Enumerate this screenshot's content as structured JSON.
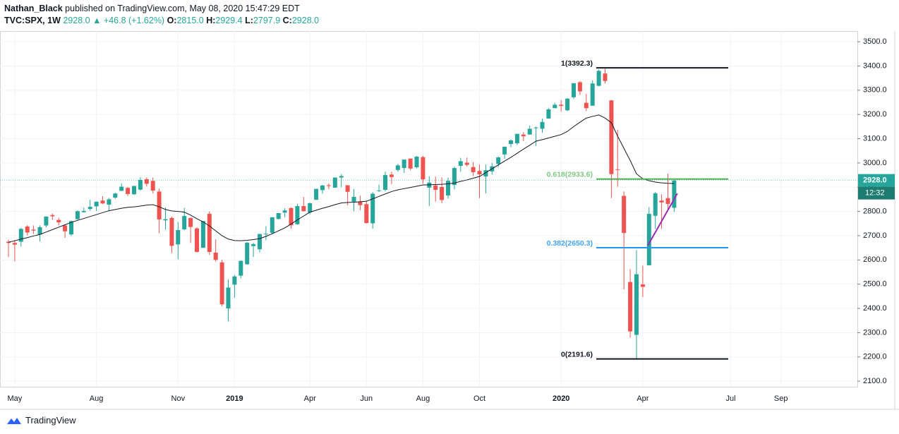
{
  "header": {
    "author": "Nathan_Black",
    "published": "published on TradingView.com, May 08, 2020 15:47:29 EDT",
    "symbol": "TVC:SPX, 1W",
    "last": "2928.0",
    "change": "▲ +46.8 (+1.62%)",
    "ohlc": [
      {
        "key": "O:",
        "value": "2815.0"
      },
      {
        "key": "H:",
        "value": "2929.4"
      },
      {
        "key": "L:",
        "value": "2797.9"
      },
      {
        "key": "C:",
        "value": "2928.0"
      }
    ]
  },
  "footer": {
    "brand": "TradingView"
  },
  "chart_data": {
    "type": "candlestick",
    "up_color": "#26a69a",
    "down_color": "#ef5350",
    "grid": true,
    "categories": [
      null,
      "May",
      null,
      null,
      null,
      null,
      null,
      null,
      null,
      null,
      null,
      null,
      null,
      null,
      "Aug",
      null,
      null,
      null,
      null,
      null,
      null,
      null,
      null,
      null,
      null,
      null,
      null,
      "Nov",
      null,
      null,
      null,
      null,
      null,
      null,
      null,
      null,
      "2019",
      null,
      null,
      null,
      null,
      null,
      null,
      null,
      null,
      null,
      null,
      null,
      "Apr",
      null,
      null,
      null,
      null,
      null,
      null,
      null,
      null,
      "Jun",
      null,
      null,
      null,
      null,
      null,
      null,
      null,
      null,
      "Aug",
      null,
      null,
      null,
      null,
      null,
      null,
      null,
      null,
      "Oct",
      null,
      null,
      null,
      null,
      null,
      null,
      null,
      null,
      null,
      null,
      null,
      null,
      "2020",
      null,
      null,
      null,
      null,
      null,
      null,
      null,
      null,
      null,
      null,
      null,
      null,
      "Apr",
      null,
      null,
      null,
      null,
      null,
      null,
      null,
      null,
      null,
      null,
      null,
      null,
      null,
      "Jul",
      null,
      null,
      null,
      null,
      null,
      null,
      null,
      "Sep",
      null,
      null,
      null,
      null,
      null,
      null,
      null,
      null,
      null,
      null,
      null,
      null
    ],
    "open": [
      2675,
      2670,
      2675,
      2738,
      2725,
      2705,
      2742,
      2785,
      2765,
      2742,
      2705,
      2768,
      2797,
      2810,
      2821,
      2845,
      2828,
      2857,
      2885,
      2897,
      2871,
      2890,
      2933,
      2926,
      2882,
      2763,
      2773,
      2664,
      2726,
      2773,
      2730,
      2650,
      2790,
      2630,
      2590,
      2400,
      2498,
      2535,
      2582,
      2657,
      2644,
      2706,
      2712,
      2769,
      2795,
      2814,
      2747,
      2822,
      2796,
      2848,
      2888,
      2908,
      2898,
      2940,
      2908,
      2840,
      2841,
      2830,
      2751,
      2885,
      2889,
      2952,
      2971,
      2979,
      3018,
      2982,
      3024,
      2898,
      2907,
      2901,
      2866,
      2909,
      2988,
      3001,
      2983,
      2967,
      2944,
      2965,
      2996,
      3035,
      3078,
      3081,
      3117,
      3117,
      3143,
      3141,
      3183,
      3226,
      3240,
      3217,
      3271,
      3333,
      3248,
      3236,
      3318,
      3369,
      3258,
      2974,
      2864,
      2509,
      2291,
      2499,
      2578,
      2782,
      2845,
      2855,
      2815,
      null,
      null,
      null,
      null,
      null,
      null,
      null,
      null,
      null,
      null,
      null,
      null,
      null,
      null,
      null,
      null,
      null,
      null,
      null,
      null,
      null,
      null,
      null,
      null,
      null,
      null,
      null,
      null,
      null
    ],
    "high": [
      2683,
      2682,
      2732,
      2743,
      2742,
      2742,
      2779,
      2791,
      2774,
      2746,
      2762,
      2804,
      2816,
      2848,
      2841,
      2863,
      2855,
      2877,
      2916,
      2901,
      2906,
      2941,
      2940,
      2940,
      2894,
      2816,
      2779,
      2756,
      2815,
      2775,
      2735,
      2760,
      2800,
      2685,
      2601,
      2520,
      2538,
      2598,
      2675,
      2671,
      2708,
      2739,
      2776,
      2794,
      2813,
      2817,
      2831,
      2860,
      2836,
      2893,
      2910,
      2916,
      2940,
      2954,
      2908,
      2892,
      2865,
      2841,
      2880,
      2911,
      2964,
      2964,
      2996,
      3014,
      3018,
      3028,
      3029,
      2945,
      2944,
      2940,
      2940,
      2985,
      3021,
      3022,
      3003,
      2993,
      2993,
      3000,
      3027,
      3067,
      3097,
      3120,
      3127,
      3154,
      3150,
      3183,
      3226,
      3248,
      3259,
      3268,
      3329,
      3338,
      3285,
      3341,
      3385,
      3393,
      3260,
      3137,
      2882,
      2562,
      2641,
      2576,
      2818,
      2880,
      2871,
      2955,
      2929.4,
      null,
      null,
      null,
      null,
      null,
      null,
      null,
      null,
      null,
      null,
      null,
      null,
      null,
      null,
      null,
      null,
      null,
      null,
      null,
      null,
      null,
      null,
      null,
      null,
      null,
      null,
      null,
      null,
      null
    ],
    "low": [
      2612,
      2594,
      2655,
      2701,
      2707,
      2676,
      2735,
      2765,
      2742,
      2691,
      2699,
      2766,
      2795,
      2803,
      2802,
      2830,
      2803,
      2852,
      2884,
      2864,
      2868,
      2886,
      2903,
      2874,
      2710,
      2725,
      2628,
      2603,
      2722,
      2670,
      2631,
      2649,
      2621,
      2593,
      2409,
      2347,
      2444,
      2524,
      2580,
      2612,
      2631,
      2681,
      2705,
      2767,
      2775,
      2729,
      2745,
      2800,
      2788,
      2848,
      2873,
      2892,
      2898,
      2900,
      2825,
      2801,
      2805,
      2750,
      2729,
      2880,
      2883,
      2913,
      2964,
      2959,
      2970,
      2977,
      2914,
      2822,
      2840,
      2834,
      2853,
      2891,
      2964,
      2985,
      2946,
      2855,
      2874,
      2952,
      2983,
      3017,
      3065,
      3074,
      3091,
      3117,
      3070,
      3124,
      3183,
      3226,
      3212,
      3214,
      3264,
      3280,
      3214,
      3236,
      3316,
      3328,
      2855,
      2902,
      2478,
      2280,
      2192,
      2447,
      2578,
      2727,
      2728,
      2801,
      2797.9,
      null,
      null,
      null,
      null,
      null,
      null,
      null,
      null,
      null,
      null,
      null,
      null,
      null,
      null,
      null,
      null,
      null,
      null,
      null,
      null,
      null,
      null,
      null,
      null,
      null,
      null,
      null,
      null,
      null
    ],
    "close": [
      2670,
      2663,
      2728,
      2713,
      2721,
      2735,
      2779,
      2780,
      2755,
      2718,
      2760,
      2801,
      2802,
      2819,
      2840,
      2833,
      2850,
      2874,
      2902,
      2872,
      2905,
      2930,
      2914,
      2886,
      2767,
      2768,
      2658,
      2723,
      2781,
      2736,
      2633,
      2760,
      2633,
      2600,
      2417,
      2486,
      2532,
      2596,
      2671,
      2665,
      2707,
      2708,
      2776,
      2793,
      2804,
      2743,
      2822,
      2801,
      2834,
      2893,
      2907,
      2905,
      2940,
      2946,
      2881,
      2860,
      2826,
      2752,
      2873,
      2887,
      2950,
      2942,
      2990,
      3014,
      2977,
      3026,
      2932,
      2919,
      2889,
      2847,
      2926,
      2979,
      3007,
      2992,
      2962,
      2953,
      2970,
      2986,
      3023,
      3067,
      3093,
      3120,
      3110,
      3141,
      3146,
      3169,
      3221,
      3240,
      3235,
      3265,
      3329,
      3295,
      3226,
      3328,
      3380,
      3338,
      2954,
      2972,
      2711,
      2305,
      2541,
      2489,
      2790,
      2875,
      2837,
      2831,
      2928,
      null,
      null,
      null,
      null,
      null,
      null,
      null,
      null,
      null,
      null,
      null,
      null,
      null,
      null,
      null,
      null,
      null,
      null,
      null,
      null,
      null,
      null,
      null,
      null,
      null,
      null,
      null,
      null,
      null
    ],
    "ma": [
      2673,
      2679,
      2686,
      2692,
      2699,
      2705,
      2715,
      2725,
      2735,
      2745,
      2755,
      2763,
      2771,
      2779,
      2787,
      2795,
      2803,
      2808,
      2813,
      2817,
      2819,
      2822,
      2826,
      2828,
      2819,
      2808,
      2802,
      2800,
      2797,
      2785,
      2770,
      2757,
      2740,
      2720,
      2700,
      2686,
      2680,
      2679,
      2681,
      2684,
      2688,
      2697,
      2708,
      2720,
      2732,
      2748,
      2765,
      2781,
      2797,
      2805,
      2813,
      2820,
      2828,
      2835,
      2837,
      2838,
      2840,
      2842,
      2852,
      2862,
      2872,
      2882,
      2889,
      2894,
      2899,
      2904,
      2909,
      2910,
      2911,
      2912,
      2914,
      2917,
      2924,
      2930,
      2937,
      2944,
      2960,
      2976,
      2992,
      3008,
      3023,
      3040,
      3057,
      3073,
      3090,
      3096,
      3103,
      3110,
      3117,
      3130,
      3150,
      3168,
      3185,
      3192,
      3198,
      3185,
      3166,
      3110,
      3060,
      3010,
      2955,
      2935,
      2927,
      2921,
      2918,
      2916,
      2915,
      null,
      null,
      null,
      null,
      null,
      null,
      null,
      null,
      null,
      null,
      null,
      null,
      null,
      null,
      null,
      null,
      null,
      null,
      null,
      null,
      null,
      null,
      null,
      null,
      null,
      null,
      null,
      null,
      null
    ],
    "ma_color": "#131722",
    "ylim": [
      2077,
      3544
    ],
    "yticks": [
      {
        "value": 2100,
        "label": "2100.0"
      },
      {
        "value": 2200,
        "label": "2200.0"
      },
      {
        "value": 2300,
        "label": "2300.0"
      },
      {
        "value": 2400,
        "label": "2400.0"
      },
      {
        "value": 2500,
        "label": "2500.0"
      },
      {
        "value": 2600,
        "label": "2600.0"
      },
      {
        "value": 2700,
        "label": "2700.0"
      },
      {
        "value": 2800,
        "label": "2800.0"
      },
      {
        "value": 2900,
        "label": "2900.0"
      },
      {
        "value": 3000,
        "label": "3000.0"
      },
      {
        "value": 3100,
        "label": "3100.0"
      },
      {
        "value": 3200,
        "label": "3200.0"
      },
      {
        "value": 3300,
        "label": "3300.0"
      },
      {
        "value": 3400,
        "label": "3400.0"
      },
      {
        "value": 3500,
        "label": "3500.0"
      }
    ],
    "fib_levels": [
      {
        "label": "1(3392.3)",
        "value": 3392.3,
        "color": "#131722",
        "text_color": "#131722"
      },
      {
        "label": "0.618(2933.6)",
        "value": 2933.6,
        "color": "#4caf50",
        "text_color": "#81c784"
      },
      {
        "label": "0.382(2650.3)",
        "value": 2650.3,
        "color": "#2196f3",
        "text_color": "#42a5f5"
      },
      {
        "label": "0(2191.6)",
        "value": 2191.6,
        "color": "#131722",
        "text_color": "#131722"
      }
    ],
    "trendline": {
      "values": [
        2659,
        2874
      ],
      "color": "#9c27b0"
    },
    "last_price": {
      "value": 2928,
      "label": "2928.0",
      "countdown": "12:32"
    }
  }
}
